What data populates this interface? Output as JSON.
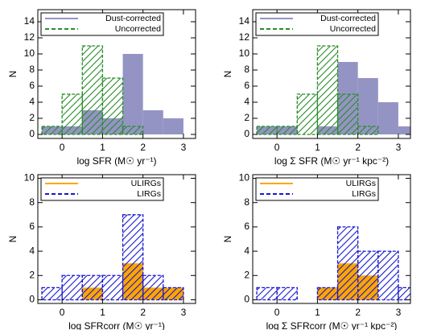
{
  "chart_data": [
    {
      "type": "histogram",
      "xlabel": "log SFR (M☉ yr⁻¹)",
      "ylabel": "N",
      "bins": [
        -0.5,
        0,
        0.5,
        1,
        1.5,
        2,
        2.5,
        3,
        3.5
      ],
      "series": [
        {
          "name": "Dust-corrected",
          "color": "#9494c4",
          "style": "filled",
          "values": [
            1,
            1,
            3,
            2,
            10,
            3,
            2,
            0
          ]
        },
        {
          "name": "Uncorrected",
          "color": "#2a8c2a",
          "style": "hatched",
          "values": [
            1,
            5,
            11,
            7,
            1,
            0,
            0,
            0
          ]
        }
      ],
      "xlim": [
        -0.6,
        3.3
      ],
      "xticks": [
        0,
        1,
        2,
        3
      ],
      "ylim": [
        -0.5,
        15.5
      ],
      "yticks": [
        0,
        2,
        4,
        6,
        8,
        10,
        12,
        14
      ]
    },
    {
      "type": "histogram",
      "xlabel": "log Σ SFR (M☉ yr⁻¹ kpc⁻²)",
      "ylabel": "N",
      "bins": [
        -0.5,
        0,
        0.5,
        1,
        1.5,
        2,
        2.5,
        3,
        3.5
      ],
      "series": [
        {
          "name": "Dust-corrected",
          "color": "#9494c4",
          "style": "filled",
          "values": [
            1,
            1,
            0,
            1,
            9,
            7,
            4,
            1
          ]
        },
        {
          "name": "Uncorrected",
          "color": "#2a8c2a",
          "style": "hatched",
          "values": [
            1,
            1,
            5,
            11,
            5,
            1,
            0,
            0
          ]
        }
      ],
      "xlim": [
        -0.6,
        3.3
      ],
      "xticks": [
        0,
        1,
        2,
        3
      ],
      "ylim": [
        -0.5,
        15.5
      ],
      "yticks": [
        0,
        2,
        4,
        6,
        8,
        10,
        12,
        14
      ]
    },
    {
      "type": "histogram",
      "xlabel": "log SFRcorr (M☉ yr⁻¹)",
      "ylabel": "N",
      "bins": [
        -0.5,
        0,
        0.5,
        1,
        1.5,
        2,
        2.5,
        3,
        3.5
      ],
      "series": [
        {
          "name": "ULIRGs",
          "color": "#ffa500",
          "style": "filled",
          "values": [
            0,
            0,
            1,
            0,
            3,
            1,
            1,
            0
          ]
        },
        {
          "name": "LIRGs",
          "color": "#1818d0",
          "style": "hatched",
          "values": [
            1,
            2,
            2,
            2,
            7,
            2,
            1,
            0
          ]
        }
      ],
      "xlim": [
        -0.6,
        3.3
      ],
      "xticks": [
        0,
        1,
        2,
        3
      ],
      "ylim": [
        -0.3,
        10.3
      ],
      "yticks": [
        0,
        2,
        4,
        6,
        8,
        10
      ]
    },
    {
      "type": "histogram",
      "xlabel": "log Σ SFRcorr (M☉ yr⁻¹ kpc⁻²)",
      "ylabel": "N",
      "bins": [
        -0.5,
        0,
        0.5,
        1,
        1.5,
        2,
        2.5,
        3,
        3.5
      ],
      "series": [
        {
          "name": "ULIRGs",
          "color": "#ffa500",
          "style": "filled",
          "values": [
            0,
            0,
            0,
            1,
            3,
            2,
            0,
            0
          ]
        },
        {
          "name": "LIRGs",
          "color": "#1818d0",
          "style": "hatched",
          "values": [
            1,
            1,
            0,
            1,
            6,
            4,
            4,
            1
          ]
        }
      ],
      "xlim": [
        -0.6,
        3.3
      ],
      "xticks": [
        0,
        1,
        2,
        3
      ],
      "ylim": [
        -0.3,
        10.3
      ],
      "yticks": [
        0,
        2,
        4,
        6,
        8,
        10
      ]
    }
  ]
}
